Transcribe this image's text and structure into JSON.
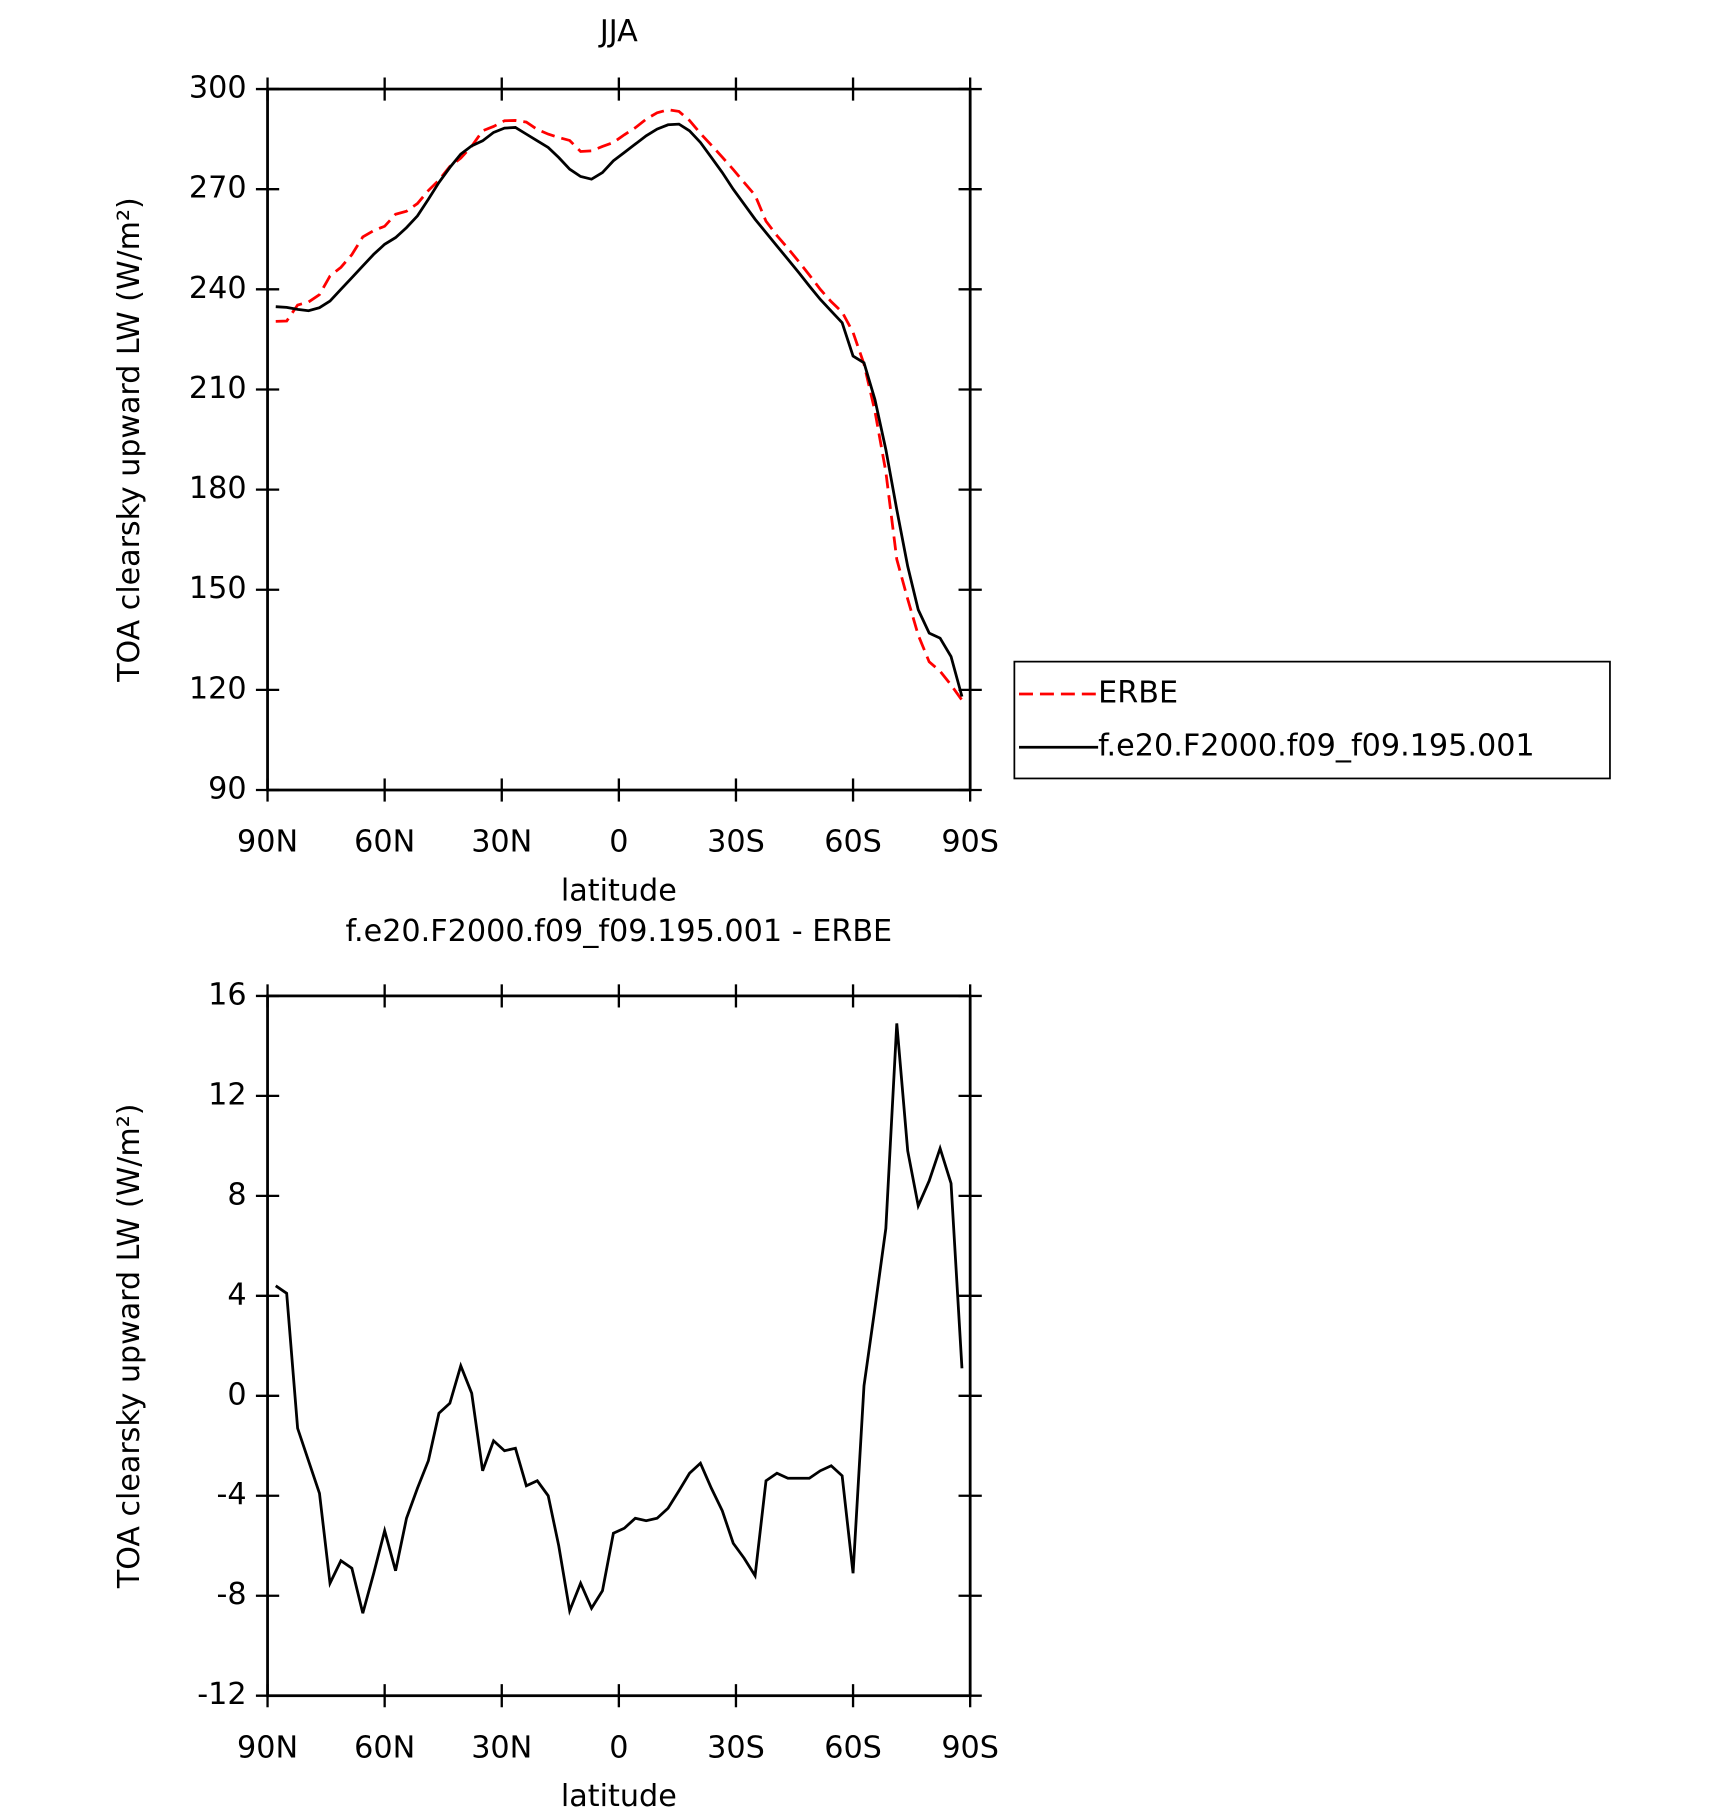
{
  "chart_data": [
    {
      "type": "line",
      "title": "JJA",
      "xlabel": "latitude",
      "ylabel": "TOA clearsky upward LW (W/m²)",
      "x": [
        87.9,
        85.1,
        82.3,
        79.5,
        76.7,
        74.0,
        71.2,
        68.4,
        65.6,
        62.8,
        60.0,
        57.2,
        54.4,
        51.6,
        48.8,
        46.1,
        43.3,
        40.5,
        37.7,
        34.9,
        32.1,
        29.3,
        26.5,
        23.7,
        20.9,
        18.1,
        15.4,
        12.6,
        9.8,
        7.0,
        4.2,
        1.4,
        -1.4,
        -4.2,
        -7.0,
        -9.8,
        -12.6,
        -15.4,
        -18.1,
        -20.9,
        -23.7,
        -26.5,
        -29.3,
        -32.1,
        -34.9,
        -37.7,
        -40.5,
        -43.3,
        -46.1,
        -48.8,
        -51.6,
        -54.4,
        -57.2,
        -60.0,
        -62.8,
        -65.6,
        -68.4,
        -71.2,
        -74.0,
        -76.7,
        -79.5,
        -82.3,
        -85.1,
        -87.9
      ],
      "series": [
        {
          "name": "ERBE",
          "color": "#ff0000",
          "dash": "dashed",
          "values": [
            230.4,
            230.5,
            235.3,
            236.2,
            238.4,
            244.0,
            246.6,
            250.4,
            255.7,
            257.6,
            258.9,
            262.5,
            263.4,
            265.7,
            269.6,
            272.7,
            276.8,
            279.3,
            282.9,
            287.5,
            288.8,
            290.5,
            290.6,
            290.1,
            287.9,
            286.5,
            285.5,
            284.6,
            281.3,
            281.5,
            282.8,
            284.0,
            286.3,
            288.4,
            291.0,
            292.9,
            293.8,
            293.3,
            290.6,
            286.7,
            283.2,
            279.6,
            275.9,
            272.0,
            268.2,
            260.4,
            256.1,
            252.3,
            248.3,
            244.3,
            240.0,
            236.3,
            233.2,
            227.1,
            217.6,
            203.5,
            185.3,
            159.1,
            147.2,
            136.4,
            128.4,
            125.6,
            121.5,
            116.9
          ]
        },
        {
          "name": "f.e20.F2000.f09_f09.195.001",
          "color": "#000000",
          "dash": "solid",
          "values": [
            234.8,
            234.6,
            234.0,
            233.6,
            234.5,
            236.5,
            240.0,
            243.5,
            247.0,
            250.5,
            253.5,
            255.5,
            258.5,
            262.0,
            267.0,
            272.0,
            276.5,
            280.5,
            283.0,
            284.5,
            287.0,
            288.3,
            288.5,
            286.5,
            284.5,
            282.5,
            279.5,
            276.0,
            273.8,
            273.0,
            275.0,
            278.5,
            281.0,
            283.5,
            286.0,
            288.0,
            289.3,
            289.5,
            287.5,
            284.0,
            279.5,
            275.0,
            270.0,
            265.5,
            261.0,
            257.0,
            253.0,
            249.0,
            245.0,
            241.0,
            237.0,
            233.5,
            230.0,
            220.0,
            218.0,
            207.0,
            192.0,
            174.0,
            157.0,
            144.0,
            137.0,
            135.5,
            130.0,
            118.0
          ]
        }
      ],
      "xlim": [
        90,
        -90
      ],
      "xticks": [
        {
          "value": 90,
          "label": "90N"
        },
        {
          "value": 60,
          "label": "60N"
        },
        {
          "value": 30,
          "label": "30N"
        },
        0,
        {
          "value": -30,
          "label": "30S"
        },
        {
          "value": -60,
          "label": "60S"
        },
        {
          "value": -90,
          "label": "90S"
        }
      ],
      "ylim": [
        90,
        300
      ],
      "yticks": [
        90,
        120,
        150,
        180,
        210,
        240,
        270,
        300
      ],
      "legend": "right"
    },
    {
      "type": "line",
      "title": "f.e20.F2000.f09_f09.195.001 - ERBE",
      "xlabel": "latitude",
      "ylabel": "TOA clearsky upward LW (W/m²)",
      "x": [
        87.9,
        85.1,
        82.3,
        79.5,
        76.7,
        74.0,
        71.2,
        68.4,
        65.6,
        62.8,
        60.0,
        57.2,
        54.4,
        51.6,
        48.8,
        46.1,
        43.3,
        40.5,
        37.7,
        34.9,
        32.1,
        29.3,
        26.5,
        23.7,
        20.9,
        18.1,
        15.4,
        12.6,
        9.8,
        7.0,
        4.2,
        1.4,
        -1.4,
        -4.2,
        -7.0,
        -9.8,
        -12.6,
        -15.4,
        -18.1,
        -20.9,
        -23.7,
        -26.5,
        -29.3,
        -32.1,
        -34.9,
        -37.7,
        -40.5,
        -43.3,
        -46.1,
        -48.8,
        -51.6,
        -54.4,
        -57.2,
        -60.0,
        -62.8,
        -65.6,
        -68.4,
        -71.2,
        -74.0,
        -76.7,
        -79.5,
        -82.3,
        -85.1,
        -87.9
      ],
      "color": "#000000",
      "values": [
        4.4,
        4.1,
        -1.3,
        -2.6,
        -3.9,
        -7.5,
        -6.6,
        -6.9,
        -8.7,
        -7.1,
        -5.4,
        -7.0,
        -4.9,
        -3.7,
        -2.6,
        -0.7,
        -0.3,
        1.2,
        0.1,
        -3.0,
        -1.8,
        -2.2,
        -2.1,
        -3.6,
        -3.4,
        -4.0,
        -6.0,
        -8.6,
        -7.5,
        -8.5,
        -7.8,
        -5.5,
        -5.3,
        -4.9,
        -5.0,
        -4.9,
        -4.5,
        -3.8,
        -3.1,
        -2.7,
        -3.7,
        -4.6,
        -5.9,
        -6.5,
        -7.2,
        -3.4,
        -3.1,
        -3.3,
        -3.3,
        -3.3,
        -3.0,
        -2.8,
        -3.2,
        -7.1,
        0.4,
        3.5,
        6.7,
        14.9,
        9.8,
        7.6,
        8.6,
        9.9,
        8.5,
        1.1
      ],
      "xlim": [
        90,
        -90
      ],
      "xticks": [
        {
          "value": 90,
          "label": "90N"
        },
        {
          "value": 60,
          "label": "60N"
        },
        {
          "value": 30,
          "label": "30N"
        },
        0,
        {
          "value": -30,
          "label": "30S"
        },
        {
          "value": -60,
          "label": "60S"
        },
        {
          "value": -90,
          "label": "90S"
        }
      ],
      "ylim": [
        -12,
        16
      ],
      "yticks": [
        -12,
        -8,
        -4,
        0,
        4,
        8,
        12,
        16
      ]
    }
  ]
}
